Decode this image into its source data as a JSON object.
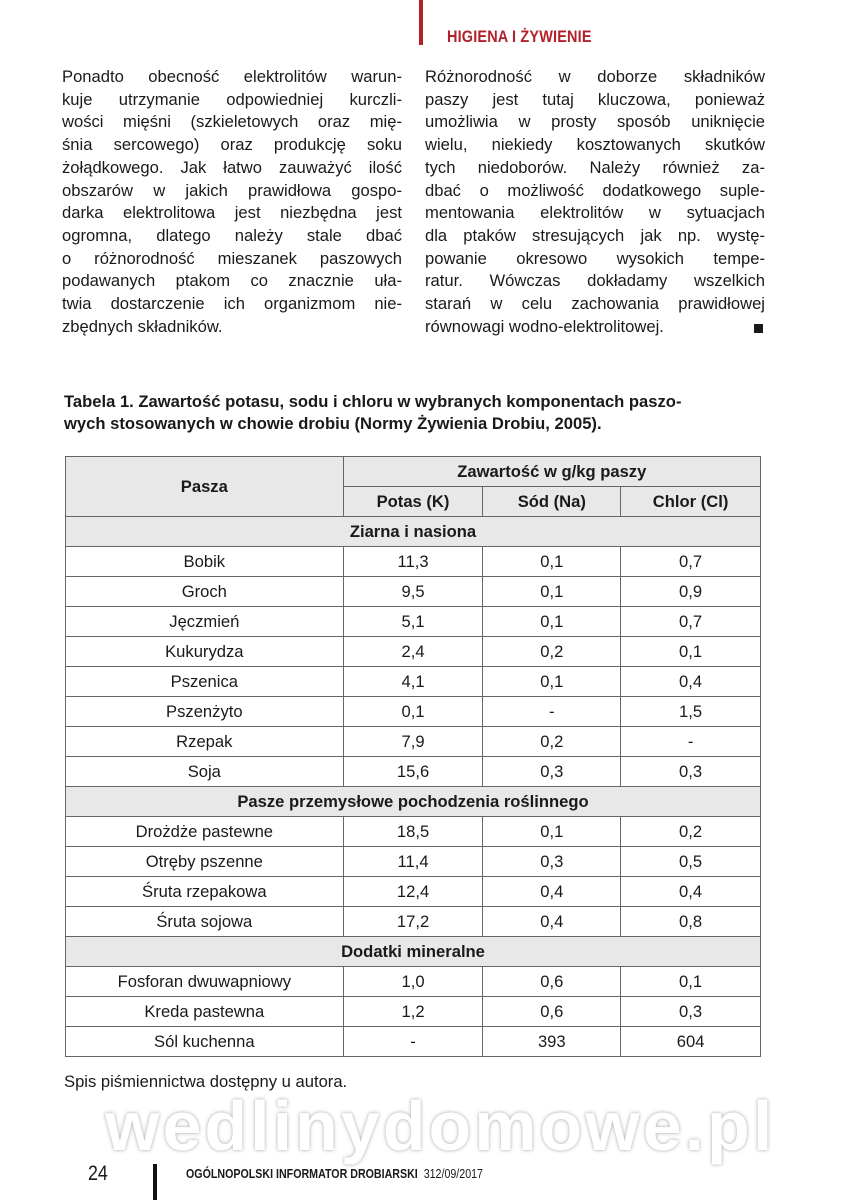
{
  "header": {
    "section": "HIGIENA I ŻYWIENIE",
    "accent_color": "#b3202a"
  },
  "left_column": [
    "Ponadto obecność elektrolitów warun-",
    "kuje utrzymanie odpowiedniej kurczli-",
    "wości mięśni (szkieletowych oraz mię-",
    "śnia sercowego) oraz produkcję soku",
    "żołądkowego. Jak łatwo zauważyć ilość",
    "obszarów w jakich prawidłowa gospo-",
    "darka elektrolitowa jest niezbędna jest",
    "ogromna, dlatego należy stale dbać",
    "o różnorodność mieszanek paszowych",
    "podawanych ptakom co znacznie uła-",
    "twia dostarczenie ich organizmom nie-",
    "zbędnych składników."
  ],
  "right_column": [
    "Różnorodność w doborze składników",
    "paszy jest tutaj kluczowa, ponieważ",
    "umożliwia w prosty sposób uniknięcie",
    "wielu, niekiedy kosztowanych skutków",
    "tych niedoborów. Należy również za-",
    "dbać o możliwość dodatkowego suple-",
    "mentowania elektrolitów w sytuacjach",
    "dla ptaków stresujących jak np. wystę-",
    "powanie okresowo wysokich tempe-",
    "ratur. Wówczas dokładamy wszelkich",
    "starań w celu zachowania prawidłowej",
    "równowagi wodno-elektrolitowej."
  ],
  "table": {
    "caption_line1": "Tabela 1. Zawartość potasu, sodu i chloru w wybranych komponentach paszo-",
    "caption_line2": "wych stosowanych w chowie drobiu (Normy Żywienia Drobiu, 2005).",
    "header_feed": "Pasza",
    "header_group": "Zawartość w g/kg paszy",
    "header_cols": [
      "Potas (K)",
      "Sód (Na)",
      "Chlor (Cl)"
    ],
    "sections": [
      {
        "title": "Ziarna i nasiona",
        "rows": [
          [
            "Bobik",
            "11,3",
            "0,1",
            "0,7"
          ],
          [
            "Groch",
            "9,5",
            "0,1",
            "0,9"
          ],
          [
            "Jęczmień",
            "5,1",
            "0,1",
            "0,7"
          ],
          [
            "Kukurydza",
            "2,4",
            "0,2",
            "0,1"
          ],
          [
            "Pszenica",
            "4,1",
            "0,1",
            "0,4"
          ],
          [
            "Pszenżyto",
            "0,1",
            "-",
            "1,5"
          ],
          [
            "Rzepak",
            "7,9",
            "0,2",
            "-"
          ],
          [
            "Soja",
            "15,6",
            "0,3",
            "0,3"
          ]
        ]
      },
      {
        "title": "Pasze przemysłowe pochodzenia roślinnego",
        "rows": [
          [
            "Drożdże pastewne",
            "18,5",
            "0,1",
            "0,2"
          ],
          [
            "Otręby pszenne",
            "11,4",
            "0,3",
            "0,5"
          ],
          [
            "Śruta rzepakowa",
            "12,4",
            "0,4",
            "0,4"
          ],
          [
            "Śruta sojowa",
            "17,2",
            "0,4",
            "0,8"
          ]
        ]
      },
      {
        "title": "Dodatki mineralne",
        "rows": [
          [
            "Fosforan dwuwapniowy",
            "1,0",
            "0,6",
            "0,1"
          ],
          [
            "Kreda pastewna",
            "1,2",
            "0,6",
            "0,3"
          ],
          [
            "Sól kuchenna",
            "-",
            "393",
            "604"
          ]
        ]
      }
    ]
  },
  "source_note": "Spis piśmiennictwa dostępny u autora.",
  "watermark": "wedlinydomowe.pl",
  "footer": {
    "page": "24",
    "publication": "OGÓLNOPOLSKI INFORMATOR DROBIARSKI",
    "issue": "312/09/2017"
  }
}
